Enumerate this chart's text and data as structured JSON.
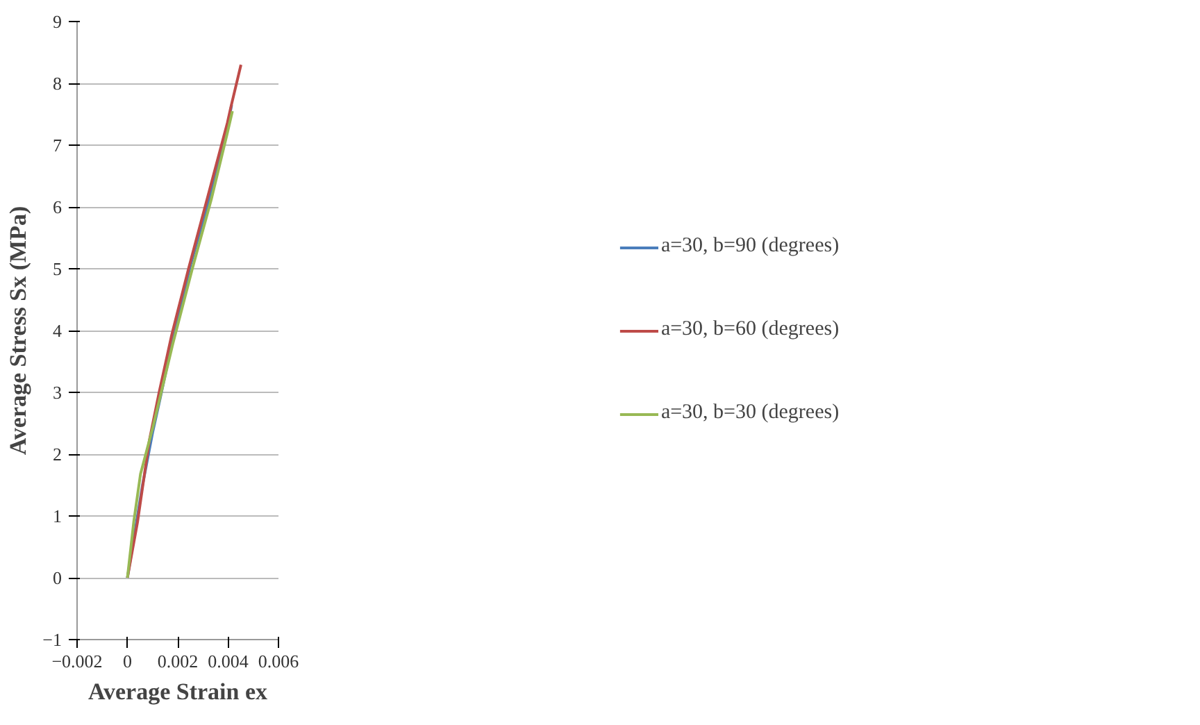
{
  "chart_data": {
    "type": "line",
    "xlabel": "Average Strain ex",
    "ylabel": "Average Stress Sx (MPa)",
    "xlim": [
      -0.002,
      0.006
    ],
    "ylim": [
      -1,
      9
    ],
    "xticks": [
      -0.002,
      0,
      0.002,
      0.004,
      0.006
    ],
    "yticks": [
      -1,
      0,
      1,
      2,
      3,
      4,
      5,
      6,
      7,
      8,
      9
    ],
    "grid": "y",
    "legend": "right",
    "series": [
      {
        "name": "a=30, b=90 (degrees)",
        "color": "#4a7ebb",
        "x": [
          0,
          0.0003,
          0.0006,
          0.001,
          0.0013,
          0.0018,
          0.0025,
          0.0033,
          0.004,
          0.00414
        ],
        "values": [
          0,
          0.75,
          1.5,
          2.35,
          2.9,
          3.85,
          5.05,
          6.2,
          7.35,
          7.65
        ]
      },
      {
        "name": "a=30, b=60 (degrees)",
        "color": "#be4b48",
        "x": [
          0,
          0.0004,
          0.00087,
          0.00126,
          0.00176,
          0.00244,
          0.00318,
          0.00397,
          0.0041,
          0.00451
        ],
        "values": [
          0,
          0.9,
          2.22,
          3.0,
          3.93,
          5.02,
          6.15,
          7.36,
          7.6,
          8.3
        ]
      },
      {
        "name": "a=30, b=30 (degrees)",
        "color": "#98b954",
        "x": [
          0,
          0.00025,
          0.00052,
          0.00102,
          0.0018,
          0.00259,
          0.00333,
          0.00397,
          0.00417
        ],
        "values": [
          0,
          0.9,
          1.68,
          2.45,
          3.78,
          5.02,
          6.12,
          7.2,
          7.55
        ]
      }
    ]
  }
}
